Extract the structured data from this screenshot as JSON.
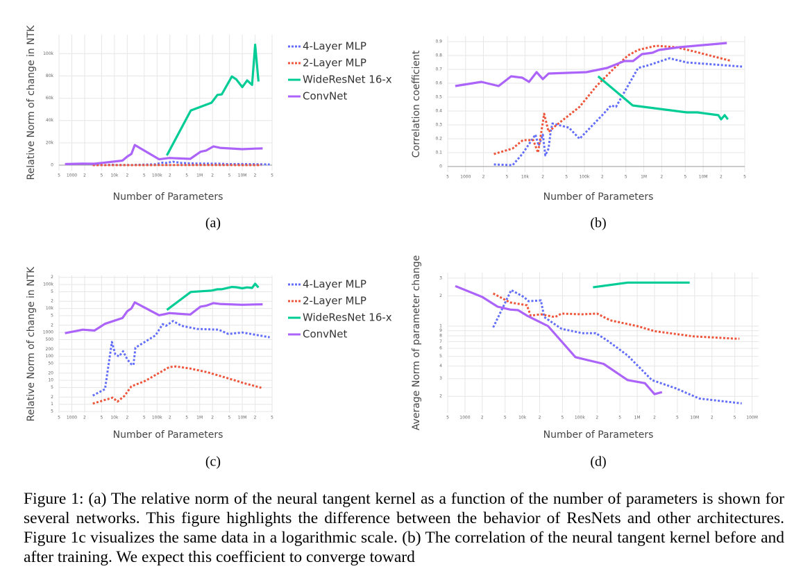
{
  "chart_data": [
    {
      "type": "line",
      "ylabel": "Relative Norm of change in NTK",
      "xlabel": "Number of Parameters",
      "sublabel": "(a)",
      "xscale": "log",
      "yscale": "linear",
      "grid": true,
      "legend": "right",
      "xlim": [
        500,
        50000000
      ],
      "xticks": [
        {
          "value": 500,
          "label": "5"
        },
        1000,
        {
          "value": 2000,
          "label": "2"
        },
        {
          "value": 5000,
          "label": "5"
        },
        {
          "value": 10000,
          "label": "10k"
        },
        {
          "value": 20000,
          "label": "2"
        },
        {
          "value": 50000,
          "label": "5"
        },
        {
          "value": 100000,
          "label": "100k"
        },
        {
          "value": 200000,
          "label": "2"
        },
        {
          "value": 500000,
          "label": "5"
        },
        {
          "value": 1000000,
          "label": "1M"
        },
        {
          "value": 2000000,
          "label": "2"
        },
        {
          "value": 5000000,
          "label": "5"
        },
        {
          "value": 10000000,
          "label": "10M"
        },
        {
          "value": 20000000,
          "label": "2"
        },
        {
          "value": 50000000,
          "label": "5"
        }
      ],
      "ylim": [
        -5000,
        117000
      ],
      "yticks": [
        0,
        {
          "value": 20000,
          "label": "20k"
        },
        {
          "value": 40000,
          "label": "40k"
        },
        {
          "value": 60000,
          "label": "60k"
        },
        {
          "value": 80000,
          "label": "80k"
        },
        {
          "value": 100000,
          "label": "100k"
        }
      ],
      "series": [
        {
          "name": "4-Layer MLP",
          "color": "#636efa",
          "dash": "dot",
          "x": [
            3100,
            6000,
            8700,
            10500,
            12800,
            16000,
            20000,
            25000,
            28000,
            31000,
            92000,
            135000,
            163000,
            237000,
            370000,
            870000,
            2800000,
            4700000,
            10000000,
            44000000
          ],
          "values": [
            2.3,
            4.3,
            400,
            120,
            100,
            165,
            75,
            47,
            44,
            230,
            760,
            2200,
            1900,
            3000,
            1900,
            1400,
            1300,
            860,
            1000,
            630
          ]
        },
        {
          "name": "2-Layer MLP",
          "color": "#ef553b",
          "dash": "dot",
          "x": [
            3100,
            9100,
            11800,
            17000,
            25000,
            53000,
            120000,
            195000,
            280000,
            600000,
            1500000,
            4700000,
            12000000,
            28000000
          ],
          "values": [
            1.07,
            1.9,
            1.3,
            2.2,
            5.6,
            9.5,
            22,
            36,
            38,
            31,
            22,
            12,
            7.3,
            4.9
          ]
        },
        {
          "name": "WideResNet 16-x",
          "color": "#00cc96",
          "dash": "solid",
          "x": [
            170000,
            620000,
            1900000,
            2600000,
            3300000,
            5700000,
            7200000,
            10000000,
            13000000,
            17000000,
            20000000,
            24000000
          ],
          "values": [
            8700,
            49000,
            56000,
            63000,
            63500,
            79500,
            77000,
            70000,
            76000,
            72000,
            108000,
            75000
          ]
        },
        {
          "name": "ConvNet",
          "color": "#ab63fa",
          "dash": "solid",
          "x": [
            690,
            1800,
            3400,
            6000,
            15400,
            20000,
            25000,
            30000,
            112000,
            195000,
            600000,
            1050000,
            1400000,
            2100000,
            3000000,
            10000000,
            20000000,
            30000000
          ],
          "values": [
            930,
            1300,
            1200,
            2300,
            4000,
            7700,
            10000,
            18000,
            5200,
            6400,
            5600,
            12000,
            13000,
            16800,
            15500,
            14300,
            14800,
            15000
          ]
        }
      ]
    },
    {
      "type": "line",
      "ylabel": "Correlation coefficient",
      "xlabel": "Number of Parameters",
      "sublabel": "(b)",
      "xscale": "log",
      "yscale": "linear",
      "grid": true,
      "xlim": [
        500,
        50000000
      ],
      "xticks": [
        {
          "value": 500,
          "label": "5"
        },
        1000,
        {
          "value": 2000,
          "label": "2"
        },
        {
          "value": 5000,
          "label": "5"
        },
        {
          "value": 10000,
          "label": "10k"
        },
        {
          "value": 20000,
          "label": "2"
        },
        {
          "value": 50000,
          "label": "5"
        },
        {
          "value": 100000,
          "label": "100k"
        },
        {
          "value": 200000,
          "label": "2"
        },
        {
          "value": 500000,
          "label": "5"
        },
        {
          "value": 1000000,
          "label": "1M"
        },
        {
          "value": 2000000,
          "label": "2"
        },
        {
          "value": 5000000,
          "label": "5"
        },
        {
          "value": 10000000,
          "label": "10M"
        },
        {
          "value": 20000000,
          "label": "2"
        },
        {
          "value": 50000000,
          "label": "5"
        }
      ],
      "ylim": [
        -0.04,
        0.94
      ],
      "yticks": [
        0,
        0.1,
        0.2,
        0.3,
        0.4,
        0.5,
        0.6,
        0.7,
        0.8,
        0.9
      ],
      "series": [
        {
          "color": "#636efa",
          "dash": "dot",
          "x": [
            3000,
            6200,
            9000,
            15000,
            17000,
            20000,
            22000,
            25000,
            27000,
            29000,
            55000,
            83000,
            210000,
            280000,
            340000,
            800000,
            1200000,
            2700000,
            5300000,
            45000000
          ],
          "values": [
            0.015,
            0.01,
            0.09,
            0.23,
            0.15,
            0.23,
            0.08,
            0.13,
            0.25,
            0.31,
            0.28,
            0.2,
            0.38,
            0.44,
            0.43,
            0.71,
            0.73,
            0.78,
            0.75,
            0.72
          ]
        },
        {
          "color": "#ef553b",
          "dash": "dot",
          "x": [
            3000,
            6200,
            9200,
            13800,
            16600,
            21000,
            25000,
            32000,
            83000,
            160000,
            320000,
            540000,
            800000,
            1600000,
            3500000,
            6900000,
            30000000
          ],
          "values": [
            0.09,
            0.13,
            0.19,
            0.19,
            0.1,
            0.38,
            0.25,
            0.29,
            0.43,
            0.58,
            0.71,
            0.8,
            0.84,
            0.87,
            0.86,
            0.83,
            0.76
          ]
        },
        {
          "color": "#00cc96",
          "dash": "solid",
          "x": [
            170000,
            650000,
            5300000,
            8000000,
            12000000,
            18000000,
            20000000,
            23000000,
            26000000
          ],
          "values": [
            0.65,
            0.44,
            0.39,
            0.39,
            0.38,
            0.37,
            0.34,
            0.37,
            0.34
          ]
        },
        {
          "color": "#ab63fa",
          "dash": "solid",
          "x": [
            670,
            1850,
            3600,
            5850,
            9000,
            11700,
            15700,
            20000,
            25000,
            108000,
            240000,
            470000,
            660000,
            930000,
            1400000,
            1800000,
            4000000,
            25000000
          ],
          "values": [
            0.58,
            0.61,
            0.58,
            0.65,
            0.64,
            0.61,
            0.68,
            0.63,
            0.67,
            0.68,
            0.71,
            0.76,
            0.76,
            0.81,
            0.82,
            0.84,
            0.86,
            0.89
          ]
        }
      ]
    },
    {
      "type": "line",
      "ylabel": "Relative Norm of change in NTK",
      "xlabel": "Number of Parameters",
      "sublabel": "(c)",
      "xscale": "log",
      "yscale": "log",
      "grid": true,
      "legend": "right",
      "xlim": [
        500,
        50000000
      ],
      "xticks": [
        {
          "value": 500,
          "label": "5"
        },
        1000,
        {
          "value": 2000,
          "label": "2"
        },
        {
          "value": 5000,
          "label": "5"
        },
        {
          "value": 10000,
          "label": "10k"
        },
        {
          "value": 20000,
          "label": "2"
        },
        {
          "value": 50000,
          "label": "5"
        },
        {
          "value": 100000,
          "label": "100k"
        },
        {
          "value": 200000,
          "label": "2"
        },
        {
          "value": 500000,
          "label": "5"
        },
        {
          "value": 1000000,
          "label": "1M"
        },
        {
          "value": 2000000,
          "label": "2"
        },
        {
          "value": 5000000,
          "label": "5"
        },
        {
          "value": 10000000,
          "label": "10M"
        },
        {
          "value": 20000000,
          "label": "2"
        },
        {
          "value": 50000000,
          "label": "5"
        }
      ],
      "ylim": [
        0.44,
        240000
      ],
      "yticks": [
        {
          "value": 0.5,
          "label": "5"
        },
        1,
        2,
        5,
        10,
        20,
        50,
        100,
        200,
        500,
        1000,
        {
          "value": 2000,
          "label": "2"
        },
        {
          "value": 5000,
          "label": "5"
        },
        {
          "value": 10000,
          "label": "10k"
        },
        {
          "value": 20000,
          "label": "2"
        },
        {
          "value": 50000,
          "label": "5"
        },
        {
          "value": 100000,
          "label": "100k"
        },
        {
          "value": 200000,
          "label": "2"
        }
      ],
      "series": [
        {
          "name": "4-Layer MLP",
          "color": "#636efa",
          "dash": "dot",
          "x": [
            3100,
            6000,
            8700,
            10500,
            12800,
            16000,
            20000,
            25000,
            28000,
            31000,
            92000,
            135000,
            163000,
            237000,
            370000,
            870000,
            2800000,
            4700000,
            10000000,
            44000000
          ],
          "values": [
            2.3,
            4.3,
            400,
            120,
            100,
            165,
            75,
            47,
            44,
            230,
            760,
            2200,
            1900,
            3000,
            1900,
            1400,
            1300,
            860,
            1000,
            630
          ]
        },
        {
          "name": "2-Layer MLP",
          "color": "#ef553b",
          "dash": "dot",
          "x": [
            3100,
            9100,
            11800,
            17000,
            25000,
            53000,
            120000,
            195000,
            280000,
            600000,
            1500000,
            4700000,
            12000000,
            28000000
          ],
          "values": [
            1.07,
            1.9,
            1.3,
            2.2,
            5.6,
            9.5,
            22,
            36,
            38,
            31,
            22,
            12,
            7.3,
            4.9
          ]
        },
        {
          "name": "WideResNet 16-x",
          "color": "#00cc96",
          "dash": "solid",
          "x": [
            170000,
            620000,
            1900000,
            2600000,
            3300000,
            5700000,
            7200000,
            10000000,
            13000000,
            17000000,
            20000000,
            24000000
          ],
          "values": [
            8700,
            49000,
            56000,
            63000,
            63500,
            79500,
            77000,
            70000,
            76000,
            72000,
            108000,
            75000
          ]
        },
        {
          "name": "ConvNet",
          "color": "#ab63fa",
          "dash": "solid",
          "x": [
            690,
            1800,
            3400,
            6000,
            15400,
            20000,
            25000,
            30000,
            112000,
            195000,
            600000,
            1050000,
            1400000,
            2100000,
            3000000,
            10000000,
            20000000,
            30000000
          ],
          "values": [
            930,
            1300,
            1200,
            2300,
            4000,
            7700,
            10000,
            18000,
            5200,
            6400,
            5600,
            12000,
            13000,
            16800,
            15500,
            14300,
            14800,
            15000
          ]
        }
      ]
    },
    {
      "type": "line",
      "ylabel": "Average Norm of parameter change",
      "xlabel": "Number of Parameters",
      "sublabel": "(d)",
      "xscale": "log",
      "yscale": "log",
      "grid": true,
      "xlim": [
        500,
        130000000
      ],
      "xticks": [
        {
          "value": 500,
          "label": "5"
        },
        1000,
        {
          "value": 2000,
          "label": "2"
        },
        {
          "value": 5000,
          "label": "5"
        },
        {
          "value": 10000,
          "label": "10k"
        },
        {
          "value": 20000,
          "label": "2"
        },
        {
          "value": 50000,
          "label": "5"
        },
        {
          "value": 100000,
          "label": "100k"
        },
        {
          "value": 200000,
          "label": "2"
        },
        {
          "value": 500000,
          "label": "5"
        },
        {
          "value": 1000000,
          "label": "1M"
        },
        {
          "value": 2000000,
          "label": "2"
        },
        {
          "value": 5000000,
          "label": "5"
        },
        {
          "value": 10000000,
          "label": "10M"
        },
        {
          "value": 20000000,
          "label": "2"
        },
        {
          "value": 50000000,
          "label": "5"
        },
        {
          "value": 100000000,
          "label": "100M"
        }
      ],
      "ylim": [
        0.137,
        3.4
      ],
      "yticks": [
        {
          "value": 0.2,
          "label": "2"
        },
        {
          "value": 0.3,
          "label": "3"
        },
        {
          "value": 0.4,
          "label": "4"
        },
        {
          "value": 0.5,
          "label": "5"
        },
        {
          "value": 0.6,
          "label": "6"
        },
        {
          "value": 0.7,
          "label": "7"
        },
        {
          "value": 0.8,
          "label": "8"
        },
        {
          "value": 0.9,
          "label": "9"
        },
        1,
        2,
        3
      ],
      "series": [
        {
          "color": "#636efa",
          "dash": "dot",
          "x": [
            3100,
            6400,
            10600,
            12800,
            21000,
            24000,
            48000,
            110000,
            190000,
            290000,
            680000,
            1800000,
            4700000,
            12000000,
            66000000
          ],
          "values": [
            0.97,
            2.28,
            1.95,
            1.77,
            1.8,
            1.23,
            0.94,
            0.85,
            0.85,
            0.73,
            0.51,
            0.29,
            0.24,
            0.19,
            0.17
          ]
        },
        {
          "color": "#ef553b",
          "dash": "dot",
          "x": [
            3100,
            6100,
            12000,
            13900,
            21000,
            37000,
            48000,
            110000,
            200000,
            340000,
            1000000,
            2000000,
            9500000,
            50000000,
            60000000
          ],
          "values": [
            2.11,
            1.72,
            1.61,
            1.27,
            1.31,
            1.23,
            1.33,
            1.31,
            1.33,
            1.14,
            1.0,
            0.89,
            0.79,
            0.75,
            0.75
          ]
        },
        {
          "color": "#00cc96",
          "dash": "solid",
          "x": [
            170000,
            680000,
            8200000
          ],
          "values": [
            2.43,
            2.71,
            2.71
          ]
        },
        {
          "color": "#ab63fa",
          "dash": "solid",
          "x": [
            680,
            2000,
            3700,
            6100,
            8400,
            12000,
            28000,
            84000,
            260000,
            680000,
            1360000,
            2000000,
            2700000
          ],
          "values": [
            2.5,
            1.95,
            1.56,
            1.46,
            1.44,
            1.27,
            1.0,
            0.49,
            0.42,
            0.29,
            0.27,
            0.21,
            0.22
          ]
        }
      ]
    }
  ],
  "caption": "Figure 1: (a) The relative norm of the neural tangent kernel as a function of the number of parameters is shown for several networks. This figure highlights the difference between the behavior of ResNets and other architectures. Figure 1c visualizes the same data in a logarithmic scale. (b) The correlation of the neural tangent kernel before and after training. We expect this coefficient to converge toward"
}
